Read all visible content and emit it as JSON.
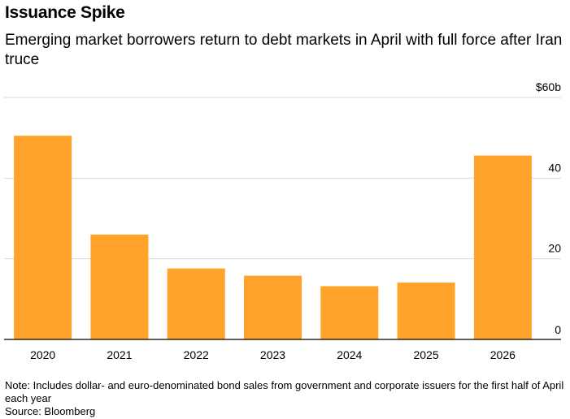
{
  "chart_data": {
    "type": "bar",
    "title": "Issuance Spike",
    "subtitle": "Emerging market borrowers return to debt markets in April with full force after Iran truce",
    "categories": [
      "2020",
      "2021",
      "2022",
      "2023",
      "2024",
      "2025",
      "2026"
    ],
    "values": [
      50.5,
      26,
      17.6,
      15.8,
      13.2,
      14.1,
      45.6
    ],
    "ylim": [
      0,
      60
    ],
    "yticks": [
      {
        "value": 60,
        "label": "$60b"
      },
      {
        "value": 40,
        "label": "40"
      },
      {
        "value": 20,
        "label": "20"
      },
      {
        "value": 0,
        "label": "0"
      }
    ],
    "y_axis_side": "right",
    "grid": true,
    "bar_color": "#ffa32b",
    "grid_color": "#d9d9d9",
    "note": "Note: Includes dollar- and euro-denominated bond sales from government and corporate issuers for the first half of April each year",
    "source": "Source: Bloomberg"
  }
}
